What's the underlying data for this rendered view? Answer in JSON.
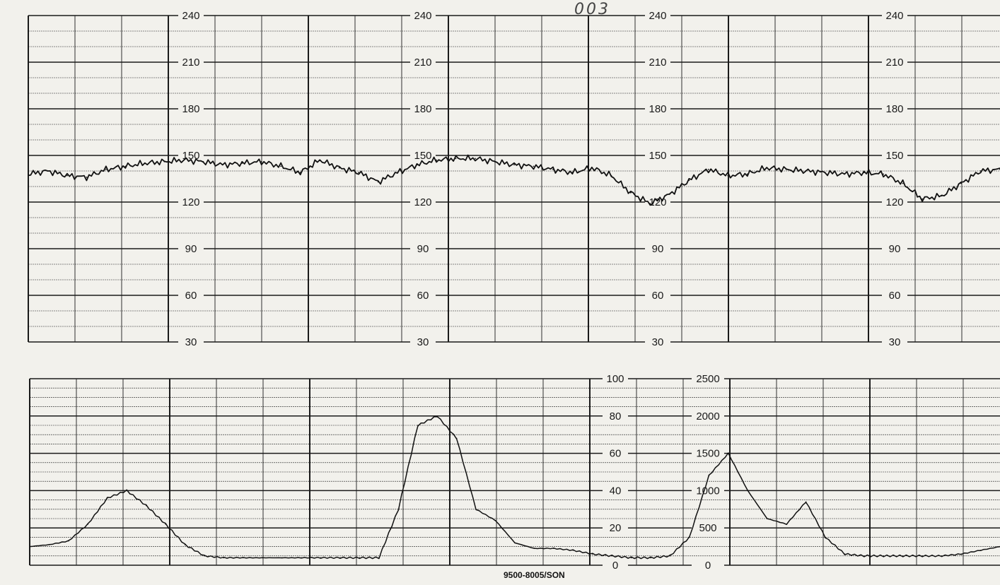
{
  "header": {
    "page_number": "003"
  },
  "footer": {
    "form_code": "9500-8005/SON"
  },
  "colors": {
    "paper": "#f2f1ec",
    "grid": "#1a1a1a",
    "trace": "#111111"
  },
  "chart_data": [
    {
      "type": "line",
      "title": "",
      "xlabel": "",
      "ylabel": "",
      "ylim": [
        30,
        240
      ],
      "y_ticks": [
        240,
        210,
        180,
        150,
        120,
        90,
        60,
        30
      ],
      "y_tick_labels": [
        "240",
        "210",
        "180",
        "150",
        "120",
        "90",
        "60",
        "30"
      ],
      "grid": true,
      "x": [
        0,
        2,
        4,
        6,
        8,
        10,
        12,
        14,
        16,
        18,
        20,
        22,
        24,
        26,
        28,
        30,
        32,
        34,
        36,
        38,
        40,
        42,
        44,
        46,
        48,
        50,
        52,
        54,
        56,
        58,
        60,
        62,
        64,
        66,
        68,
        70,
        72,
        74,
        76,
        78,
        80,
        82,
        84,
        86,
        88,
        90,
        92,
        94,
        96,
        98,
        100
      ],
      "series": [
        {
          "values": [
            138,
            140,
            137,
            136,
            141,
            143,
            145,
            146,
            147,
            146,
            144,
            145,
            146,
            143,
            139,
            147,
            142,
            139,
            133,
            139,
            144,
            147,
            148,
            148,
            146,
            144,
            143,
            141,
            139,
            142,
            137,
            126,
            119,
            125,
            134,
            141,
            137,
            138,
            142,
            141,
            140,
            139,
            138,
            139,
            138,
            132,
            122,
            124,
            132,
            140,
            141
          ]
        }
      ]
    },
    {
      "type": "line",
      "title": "",
      "xlabel": "",
      "ylabel": "",
      "ylim": [
        0,
        100
      ],
      "y_ticks": [
        100,
        80,
        60,
        40,
        20,
        0
      ],
      "y_tick_labels": [
        "100",
        "80",
        "60",
        "40",
        "20",
        "0"
      ],
      "ylim_right": [
        0,
        2500
      ],
      "y_ticks_right": [
        2500,
        2000,
        1500,
        1000,
        500,
        0
      ],
      "y_tick_labels_right": [
        "2500",
        "2000",
        "1500",
        "1000",
        "500",
        "0"
      ],
      "grid": true,
      "x": [
        0,
        2,
        4,
        6,
        8,
        10,
        12,
        14,
        16,
        18,
        20,
        22,
        24,
        26,
        28,
        30,
        32,
        34,
        36,
        38,
        40,
        42,
        44,
        46,
        48,
        50,
        52,
        54,
        56,
        58,
        60,
        62,
        64,
        66,
        68,
        70,
        72,
        74,
        76,
        78,
        80,
        82,
        84,
        86,
        88,
        90,
        92,
        94,
        96,
        98,
        100
      ],
      "series": [
        {
          "values": [
            10,
            11,
            13,
            22,
            36,
            40,
            32,
            22,
            11,
            5,
            4,
            4,
            4,
            4,
            4,
            4,
            4,
            4,
            4,
            30,
            75,
            80,
            68,
            30,
            24,
            12,
            9,
            9,
            8,
            6,
            5,
            4,
            4,
            5,
            15,
            48,
            60,
            40,
            25,
            22,
            34,
            15,
            6,
            5,
            5,
            5,
            5,
            5,
            6,
            8,
            10
          ]
        }
      ]
    }
  ]
}
